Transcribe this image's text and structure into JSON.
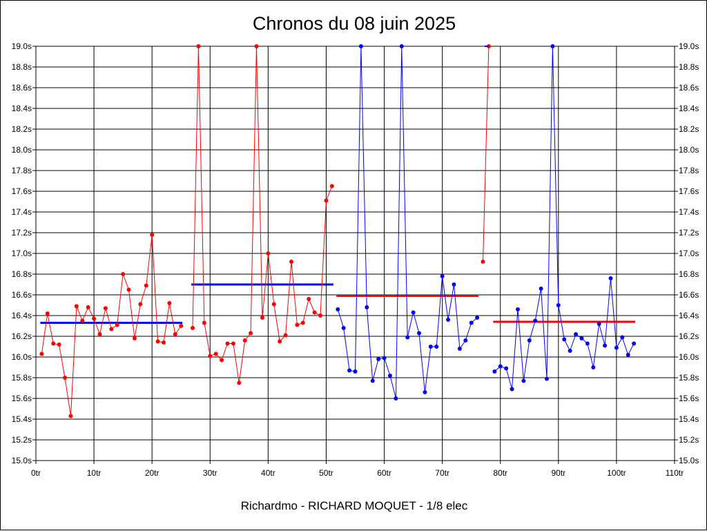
{
  "chart_data": {
    "type": "line",
    "title": "Chronos du 08 juin 2025",
    "subtitle": "Richardmo - RICHARD MOQUET - 1/8 elec",
    "ylim": [
      15.0,
      19.0
    ],
    "xlim": [
      0,
      110
    ],
    "y_ticks": [
      "15.0s",
      "15.2s",
      "15.4s",
      "15.6s",
      "15.8s",
      "16.0s",
      "16.2s",
      "16.4s",
      "16.6s",
      "16.8s",
      "17.0s",
      "17.2s",
      "17.4s",
      "17.6s",
      "17.8s",
      "18.0s",
      "18.2s",
      "18.4s",
      "18.6s",
      "18.8s",
      "19.0s"
    ],
    "x_ticks": [
      "0tr",
      "10tr",
      "20tr",
      "30tr",
      "40tr",
      "50tr",
      "60tr",
      "70tr",
      "80tr",
      "90tr",
      "100tr",
      "110tr"
    ],
    "grid": true,
    "series": [
      {
        "color": "#ff0000",
        "points": [
          [
            1,
            16.03
          ],
          [
            2,
            16.42
          ],
          [
            3,
            16.13
          ],
          [
            4,
            16.12
          ],
          [
            5,
            15.8
          ],
          [
            6,
            15.43
          ],
          [
            7,
            16.49
          ],
          [
            8,
            16.35
          ],
          [
            9,
            16.48
          ],
          [
            10,
            16.37
          ],
          [
            11,
            16.22
          ],
          [
            12,
            16.47
          ],
          [
            13,
            16.27
          ],
          [
            14,
            16.31
          ],
          [
            15,
            16.8
          ],
          [
            16,
            16.65
          ],
          [
            17,
            16.18
          ],
          [
            18,
            16.51
          ],
          [
            19,
            16.69
          ],
          [
            20,
            17.18
          ],
          [
            21,
            16.15
          ],
          [
            22,
            16.14
          ],
          [
            23,
            16.52
          ],
          [
            24,
            16.22
          ],
          [
            25,
            16.3
          ]
        ],
        "average": 16.33,
        "avg_color": "#0000ff",
        "avg_range": [
          1,
          25
        ]
      },
      {
        "color": "#ff0000",
        "points": [
          [
            27,
            16.28
          ],
          [
            28,
            19.0
          ],
          [
            29,
            16.33
          ],
          [
            30,
            16.01
          ],
          [
            31,
            16.03
          ],
          [
            32,
            15.97
          ],
          [
            33,
            16.13
          ],
          [
            34,
            16.13
          ],
          [
            35,
            15.75
          ],
          [
            36,
            16.16
          ],
          [
            37,
            16.23
          ],
          [
            38,
            19.0
          ],
          [
            39,
            16.38
          ],
          [
            40,
            17.0
          ],
          [
            41,
            16.51
          ],
          [
            42,
            16.15
          ],
          [
            43,
            16.21
          ],
          [
            44,
            16.92
          ],
          [
            45,
            16.31
          ],
          [
            46,
            16.33
          ],
          [
            47,
            16.56
          ],
          [
            48,
            16.43
          ],
          [
            49,
            16.4
          ],
          [
            50,
            17.51
          ],
          [
            51,
            17.65
          ]
        ],
        "average": 16.7,
        "avg_color": "#0000ff",
        "avg_range": [
          27,
          51
        ]
      },
      {
        "color": "#0000ff",
        "points": [
          [
            52,
            16.46
          ],
          [
            53,
            16.28
          ],
          [
            54,
            15.87
          ],
          [
            55,
            15.86
          ],
          [
            56,
            19.0
          ],
          [
            57,
            16.48
          ],
          [
            58,
            15.77
          ],
          [
            59,
            15.98
          ],
          [
            60,
            15.99
          ],
          [
            61,
            15.82
          ],
          [
            62,
            15.6
          ],
          [
            63,
            19.0
          ],
          [
            64,
            16.19
          ],
          [
            65,
            16.43
          ],
          [
            66,
            16.23
          ],
          [
            67,
            15.66
          ],
          [
            68,
            16.1
          ],
          [
            69,
            16.1
          ],
          [
            70,
            16.78
          ],
          [
            71,
            16.36
          ],
          [
            72,
            16.7
          ],
          [
            73,
            16.08
          ],
          [
            74,
            16.16
          ],
          [
            75,
            16.33
          ],
          [
            76,
            16.38
          ]
        ],
        "average": 16.59,
        "avg_color": "#ff0000",
        "avg_range": [
          52,
          76
        ]
      },
      {
        "color": "#ff0000",
        "points": [
          [
            77,
            16.92
          ],
          [
            78,
            19.0
          ]
        ],
        "average": null
      },
      {
        "color": "#0000ff",
        "points": [
          [
            79,
            15.86
          ],
          [
            80,
            15.91
          ],
          [
            81,
            15.89
          ],
          [
            82,
            15.69
          ],
          [
            83,
            16.46
          ],
          [
            84,
            15.77
          ],
          [
            85,
            16.16
          ],
          [
            86,
            16.35
          ],
          [
            87,
            16.66
          ],
          [
            88,
            15.79
          ],
          [
            89,
            19.0
          ],
          [
            90,
            16.5
          ],
          [
            91,
            16.17
          ],
          [
            92,
            16.06
          ],
          [
            93,
            16.22
          ],
          [
            94,
            16.18
          ],
          [
            95,
            16.13
          ],
          [
            96,
            15.9
          ],
          [
            97,
            16.32
          ],
          [
            98,
            16.11
          ],
          [
            99,
            16.76
          ],
          [
            100,
            16.09
          ],
          [
            101,
            16.19
          ],
          [
            102,
            16.02
          ],
          [
            103,
            16.13
          ]
        ],
        "average": 16.34,
        "avg_color": "#ff0000",
        "avg_range": [
          79,
          103
        ]
      }
    ],
    "stub_segment": {
      "color": "#0000ff",
      "x": [
        77.3,
        78.0
      ],
      "y": 19.0
    }
  }
}
